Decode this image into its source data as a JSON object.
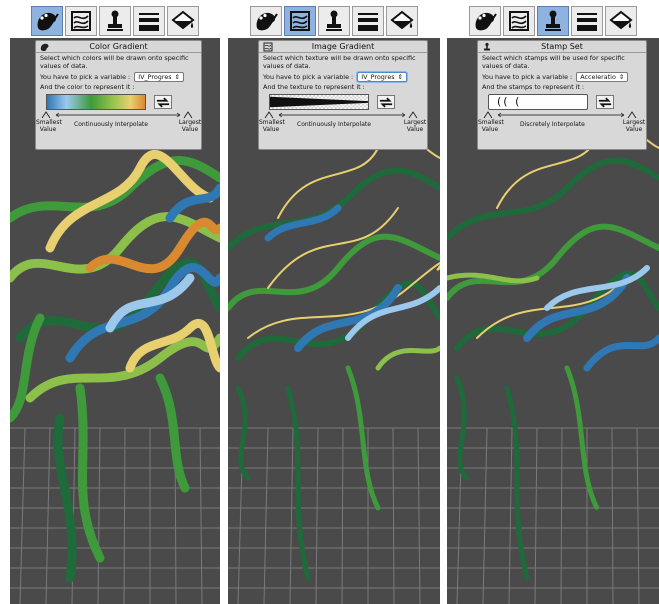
{
  "panels": [
    {
      "title": "Color Gradient",
      "description": "Select which colors will be drawn onto specific values of data.",
      "variable_prompt": "You have to pick a variable :",
      "variable_value": "IV_Progres",
      "represent_prompt": "And the color to represent it :",
      "smallest_label": "Smallest Value",
      "interpolate_label": "Continuously Interpolate",
      "largest_label": "Largest Value",
      "active_tool": "palette-tool-icon"
    },
    {
      "title": "Image Gradient",
      "description": "Select which texture will be drawn onto specific values of data.",
      "variable_prompt": "You have to pick a variable :",
      "variable_value": "IV_Progres",
      "represent_prompt": "And the texture to represent it :",
      "smallest_label": "Smallest Value",
      "interpolate_label": "Continuously Interpolate",
      "largest_label": "Largest Value",
      "active_tool": "texture-tool-icon"
    },
    {
      "title": "Stamp Set",
      "description": "Select which stamps will be used for specific values of data.",
      "variable_prompt": "You have to pick a variable :",
      "variable_value": "Acceleratio",
      "represent_prompt": "And the stamps to represent it :",
      "stamp_glyphs": "(( (",
      "smallest_label": "Smallest Value",
      "interpolate_label": "Discretely Interpolate",
      "largest_label": "Largest Value",
      "active_tool": "stamp-tool-icon"
    }
  ],
  "toolbar_icons": [
    "palette-tool-icon",
    "texture-tool-icon",
    "stamp-tool-icon",
    "line-weight-tool-icon",
    "paint-bucket-tool-icon"
  ],
  "colors": {
    "viewport_bg": "#4a4a4a",
    "grid_line": "#8a8a8a",
    "active_tool": "#8fb3e0",
    "dark_green": "#1f6a3a",
    "mid_green": "#3f9a3c",
    "light_green": "#8cc04a",
    "yellow": "#e8d070",
    "blue": "#2f78b4",
    "light_blue": "#9cc8ec",
    "orange": "#d98a30"
  }
}
